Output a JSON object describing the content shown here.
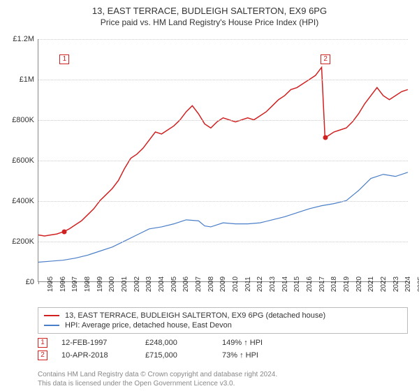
{
  "title": {
    "main": "13, EAST TERRACE, BUDLEIGH SALTERTON, EX9 6PG",
    "sub": "Price paid vs. HM Land Registry's House Price Index (HPI)"
  },
  "chart": {
    "type": "line",
    "background_color": "#ffffff",
    "grid_color": "#cccccc",
    "axis_color": "#888888",
    "x": {
      "min": 1995,
      "max": 2025,
      "tick_step": 1,
      "label_fontsize": 10,
      "label_rotation": -90
    },
    "y": {
      "min": 0,
      "max": 1200000,
      "tick_step": 200000,
      "tick_labels": [
        "£0",
        "£200K",
        "£400K",
        "£600K",
        "£800K",
        "£1M",
        "£1.2M"
      ],
      "label_fontsize": 11
    },
    "series": [
      {
        "id": "property",
        "label": "13, EAST TERRACE, BUDLEIGH SALTERTON, EX9 6PG (detached house)",
        "color": "#d02020",
        "line_width": 1.5,
        "points": [
          [
            1995.0,
            230000
          ],
          [
            1995.5,
            225000
          ],
          [
            1996.0,
            230000
          ],
          [
            1996.5,
            235000
          ],
          [
            1997.0,
            245000
          ],
          [
            1997.12,
            248000
          ],
          [
            1997.5,
            260000
          ],
          [
            1998.0,
            280000
          ],
          [
            1998.5,
            300000
          ],
          [
            1999.0,
            330000
          ],
          [
            1999.5,
            360000
          ],
          [
            2000.0,
            400000
          ],
          [
            2000.5,
            430000
          ],
          [
            2001.0,
            460000
          ],
          [
            2001.5,
            500000
          ],
          [
            2002.0,
            560000
          ],
          [
            2002.5,
            610000
          ],
          [
            2003.0,
            630000
          ],
          [
            2003.5,
            660000
          ],
          [
            2004.0,
            700000
          ],
          [
            2004.5,
            740000
          ],
          [
            2005.0,
            730000
          ],
          [
            2005.5,
            750000
          ],
          [
            2006.0,
            770000
          ],
          [
            2006.5,
            800000
          ],
          [
            2007.0,
            840000
          ],
          [
            2007.5,
            870000
          ],
          [
            2008.0,
            830000
          ],
          [
            2008.5,
            780000
          ],
          [
            2009.0,
            760000
          ],
          [
            2009.5,
            790000
          ],
          [
            2010.0,
            810000
          ],
          [
            2010.5,
            800000
          ],
          [
            2011.0,
            790000
          ],
          [
            2011.5,
            800000
          ],
          [
            2012.0,
            810000
          ],
          [
            2012.5,
            800000
          ],
          [
            2013.0,
            820000
          ],
          [
            2013.5,
            840000
          ],
          [
            2014.0,
            870000
          ],
          [
            2014.5,
            900000
          ],
          [
            2015.0,
            920000
          ],
          [
            2015.5,
            950000
          ],
          [
            2016.0,
            960000
          ],
          [
            2016.5,
            980000
          ],
          [
            2017.0,
            1000000
          ],
          [
            2017.5,
            1020000
          ],
          [
            2018.0,
            1060000
          ],
          [
            2018.27,
            715000
          ],
          [
            2018.5,
            720000
          ],
          [
            2019.0,
            740000
          ],
          [
            2019.5,
            750000
          ],
          [
            2020.0,
            760000
          ],
          [
            2020.5,
            790000
          ],
          [
            2021.0,
            830000
          ],
          [
            2021.5,
            880000
          ],
          [
            2022.0,
            920000
          ],
          [
            2022.5,
            960000
          ],
          [
            2023.0,
            920000
          ],
          [
            2023.5,
            900000
          ],
          [
            2024.0,
            920000
          ],
          [
            2024.5,
            940000
          ],
          [
            2025.0,
            950000
          ]
        ]
      },
      {
        "id": "hpi",
        "label": "HPI: Average price, detached house, East Devon",
        "color": "#4a7ec8",
        "line_width": 1.2,
        "points": [
          [
            1995.0,
            95000
          ],
          [
            1996.0,
            100000
          ],
          [
            1997.0,
            105000
          ],
          [
            1998.0,
            115000
          ],
          [
            1999.0,
            130000
          ],
          [
            2000.0,
            150000
          ],
          [
            2001.0,
            170000
          ],
          [
            2002.0,
            200000
          ],
          [
            2003.0,
            230000
          ],
          [
            2004.0,
            260000
          ],
          [
            2005.0,
            270000
          ],
          [
            2006.0,
            285000
          ],
          [
            2007.0,
            305000
          ],
          [
            2008.0,
            300000
          ],
          [
            2008.5,
            275000
          ],
          [
            2009.0,
            270000
          ],
          [
            2010.0,
            290000
          ],
          [
            2011.0,
            285000
          ],
          [
            2012.0,
            285000
          ],
          [
            2013.0,
            290000
          ],
          [
            2014.0,
            305000
          ],
          [
            2015.0,
            320000
          ],
          [
            2016.0,
            340000
          ],
          [
            2017.0,
            360000
          ],
          [
            2018.0,
            375000
          ],
          [
            2019.0,
            385000
          ],
          [
            2020.0,
            400000
          ],
          [
            2021.0,
            450000
          ],
          [
            2022.0,
            510000
          ],
          [
            2023.0,
            530000
          ],
          [
            2024.0,
            520000
          ],
          [
            2025.0,
            540000
          ]
        ]
      }
    ],
    "markers": [
      {
        "n": "1",
        "x": 1997.12,
        "y_box": 1100000,
        "y_dot": 248000,
        "color": "#d02020"
      },
      {
        "n": "2",
        "x": 2018.27,
        "y_box": 1100000,
        "y_dot": 715000,
        "color": "#d02020"
      }
    ]
  },
  "legend": {
    "border_color": "#bbbbbb",
    "items": [
      {
        "series": "property"
      },
      {
        "series": "hpi"
      }
    ]
  },
  "transactions": [
    {
      "n": "1",
      "date": "12-FEB-1997",
      "price": "£248,000",
      "pct": "149% ↑ HPI",
      "color": "#d02020"
    },
    {
      "n": "2",
      "date": "10-APR-2018",
      "price": "£715,000",
      "pct": "73% ↑ HPI",
      "color": "#d02020"
    }
  ],
  "footer": {
    "line1": "Contains HM Land Registry data © Crown copyright and database right 2024.",
    "line2": "This data is licensed under the Open Government Licence v3.0."
  }
}
